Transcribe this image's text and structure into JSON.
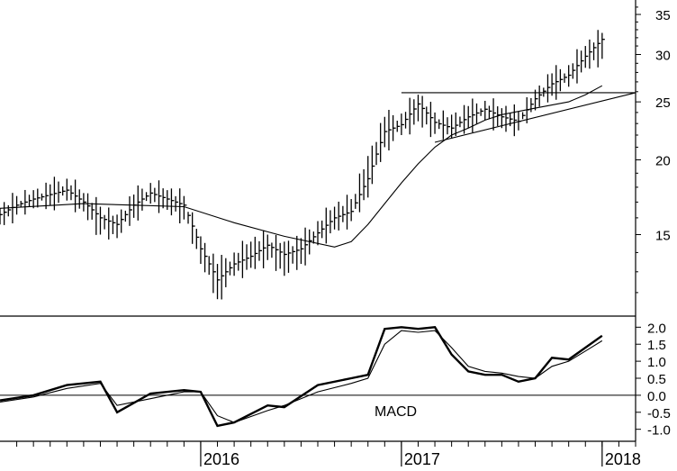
{
  "chart_data": [
    {
      "type": "ohlc",
      "panel": "price",
      "y_scale": "log",
      "ylim": [
        11,
        37
      ],
      "y_ticks": [
        "15",
        "20",
        "25",
        "30",
        "35"
      ],
      "x_range": [
        "2015-01",
        "2018-03"
      ],
      "x_ticks": [
        "2016",
        "2017",
        "2018"
      ],
      "series": [
        {
          "kind": "weekly-bars",
          "x": [
            "2015-01",
            "2015-02",
            "2015-03",
            "2015-04",
            "2015-05",
            "2015-06",
            "2015-07",
            "2015-08",
            "2015-09",
            "2015-10",
            "2015-11",
            "2015-12",
            "2016-01",
            "2016-02",
            "2016-03",
            "2016-04",
            "2016-05",
            "2016-06",
            "2016-07",
            "2016-08",
            "2016-09",
            "2016-10",
            "2016-11",
            "2016-12",
            "2017-01",
            "2017-02",
            "2017-03",
            "2017-04",
            "2017-05",
            "2017-06",
            "2017-07",
            "2017-08",
            "2017-09",
            "2017-10",
            "2017-11",
            "2017-12",
            "2018-01"
          ],
          "close": [
            16.2,
            16.8,
            17.2,
            17.5,
            17.8,
            17.0,
            16.0,
            15.6,
            16.8,
            17.6,
            17.2,
            16.8,
            14.2,
            12.6,
            13.4,
            13.8,
            14.4,
            13.9,
            14.2,
            15.1,
            16.0,
            16.4,
            18.6,
            22.3,
            22.9,
            24.8,
            23.1,
            22.6,
            23.6,
            24.3,
            23.6,
            23.2,
            25.3,
            26.8,
            27.7,
            29.8,
            31.8
          ],
          "high": [
            16.6,
            17.4,
            17.8,
            18.2,
            18.6,
            17.6,
            16.7,
            16.2,
            17.5,
            18.3,
            17.8,
            17.4,
            14.9,
            13.4,
            14.0,
            14.6,
            15.0,
            14.6,
            14.8,
            15.8,
            16.7,
            17.2,
            20.3,
            23.6,
            23.9,
            25.7,
            24.0,
            23.8,
            24.6,
            25.1,
            24.4,
            24.1,
            26.2,
            27.9,
            28.8,
            31.0,
            32.6
          ],
          "low": [
            15.6,
            16.2,
            16.6,
            16.8,
            17.1,
            16.4,
            15.0,
            14.8,
            16.0,
            16.9,
            16.5,
            15.9,
            13.4,
            11.7,
            12.8,
            13.2,
            13.6,
            12.8,
            13.4,
            14.4,
            15.3,
            15.8,
            17.3,
            21.0,
            22.0,
            23.2,
            22.1,
            21.7,
            22.6,
            23.3,
            22.6,
            22.4,
            24.2,
            25.6,
            26.5,
            28.5,
            29.5
          ]
        },
        {
          "kind": "moving-average",
          "x": [
            "2015-01",
            "2015-06",
            "2015-09",
            "2015-12",
            "2016-03",
            "2016-06",
            "2016-09",
            "2016-10",
            "2016-11",
            "2016-12",
            "2017-01",
            "2017-02",
            "2017-03",
            "2017-04",
            "2017-05",
            "2017-06",
            "2017-07",
            "2017-08",
            "2017-09",
            "2017-10",
            "2017-11",
            "2017-12",
            "2018-01"
          ],
          "values": [
            16.6,
            16.9,
            16.8,
            16.7,
            15.7,
            14.9,
            14.3,
            14.6,
            15.6,
            16.9,
            18.3,
            19.7,
            21.0,
            22.0,
            22.6,
            23.3,
            23.8,
            24.1,
            24.4,
            24.7,
            25.0,
            25.7,
            26.6
          ]
        }
      ],
      "lines": [
        {
          "kind": "resistance",
          "x": [
            "2017-01",
            "2018-03"
          ],
          "y": [
            25.9,
            25.9
          ]
        },
        {
          "kind": "trendline",
          "x": [
            "2017-03",
            "2018-03"
          ],
          "y": [
            21.4,
            25.9
          ]
        }
      ]
    },
    {
      "type": "line",
      "panel": "indicator",
      "label": "MACD",
      "ylim": [
        -1.3,
        2.3
      ],
      "y_ticks": [
        "2.0",
        "1.5",
        "1.0",
        "0.5",
        "0.0",
        "-0.5",
        "-1.0"
      ],
      "zero_line": true,
      "series": [
        {
          "kind": "macd",
          "x": [
            "2015-01",
            "2015-03",
            "2015-05",
            "2015-07",
            "2015-08",
            "2015-10",
            "2015-12",
            "2016-01",
            "2016-02",
            "2016-03",
            "2016-05",
            "2016-06",
            "2016-08",
            "2016-10",
            "2016-11",
            "2016-12",
            "2017-01",
            "2017-02",
            "2017-03",
            "2017-04",
            "2017-05",
            "2017-06",
            "2017-07",
            "2017-08",
            "2017-09",
            "2017-10",
            "2017-11",
            "2017-12",
            "2018-01"
          ],
          "values": [
            -0.15,
            0.0,
            0.3,
            0.4,
            -0.5,
            0.05,
            0.15,
            0.1,
            -0.9,
            -0.8,
            -0.3,
            -0.35,
            0.3,
            0.5,
            0.6,
            1.95,
            2.0,
            1.95,
            2.0,
            1.2,
            0.7,
            0.6,
            0.6,
            0.4,
            0.5,
            1.1,
            1.05,
            1.4,
            1.75
          ]
        },
        {
          "kind": "signal",
          "x": [
            "2015-01",
            "2015-03",
            "2015-05",
            "2015-07",
            "2015-08",
            "2015-10",
            "2015-12",
            "2016-01",
            "2016-02",
            "2016-03",
            "2016-05",
            "2016-06",
            "2016-08",
            "2016-10",
            "2016-11",
            "2016-12",
            "2017-01",
            "2017-02",
            "2017-03",
            "2017-04",
            "2017-05",
            "2017-06",
            "2017-07",
            "2017-08",
            "2017-09",
            "2017-10",
            "2017-11",
            "2017-12",
            "2018-01"
          ],
          "values": [
            -0.2,
            -0.05,
            0.2,
            0.35,
            -0.3,
            -0.1,
            0.1,
            0.1,
            -0.6,
            -0.8,
            -0.45,
            -0.3,
            0.1,
            0.35,
            0.5,
            1.5,
            1.9,
            1.85,
            1.9,
            1.4,
            0.85,
            0.7,
            0.65,
            0.55,
            0.5,
            0.85,
            1.0,
            1.3,
            1.6
          ]
        }
      ]
    }
  ]
}
